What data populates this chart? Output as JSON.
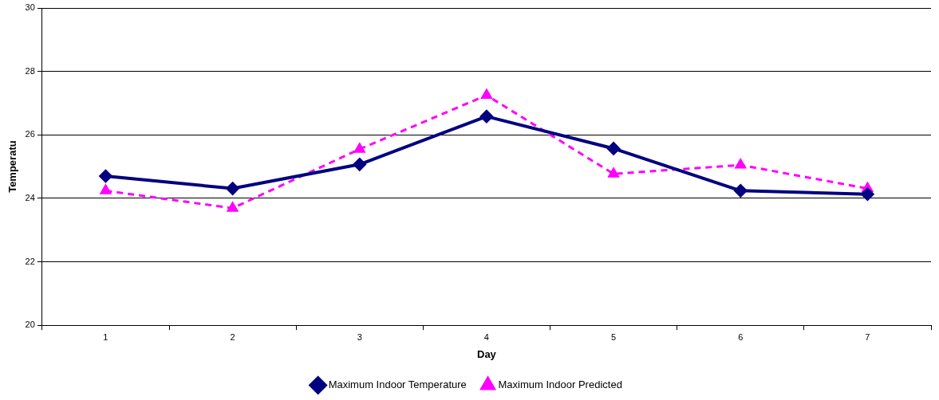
{
  "chart_data": {
    "type": "line",
    "xlabel": "Day",
    "ylabel": "Temperatu",
    "categories": [
      "1",
      "2",
      "3",
      "4",
      "5",
      "6",
      "7"
    ],
    "series": [
      {
        "name": "Maximum Indoor Temperature",
        "color": "#000080",
        "marker": "diamond",
        "line_style": "solid",
        "values": [
          24.7,
          24.31,
          25.07,
          26.58,
          25.57,
          24.24,
          24.13
        ]
      },
      {
        "name": "Maximum Indoor Predicted",
        "color": "#ff00ff",
        "marker": "triangle",
        "line_style": "dashed",
        "values": [
          24.24,
          23.69,
          25.55,
          27.25,
          24.77,
          25.05,
          24.31
        ]
      }
    ],
    "ylim": [
      20,
      30
    ],
    "yticks": [
      20,
      22,
      24,
      26,
      28,
      30
    ],
    "grid": "y",
    "legend": "bottom"
  }
}
